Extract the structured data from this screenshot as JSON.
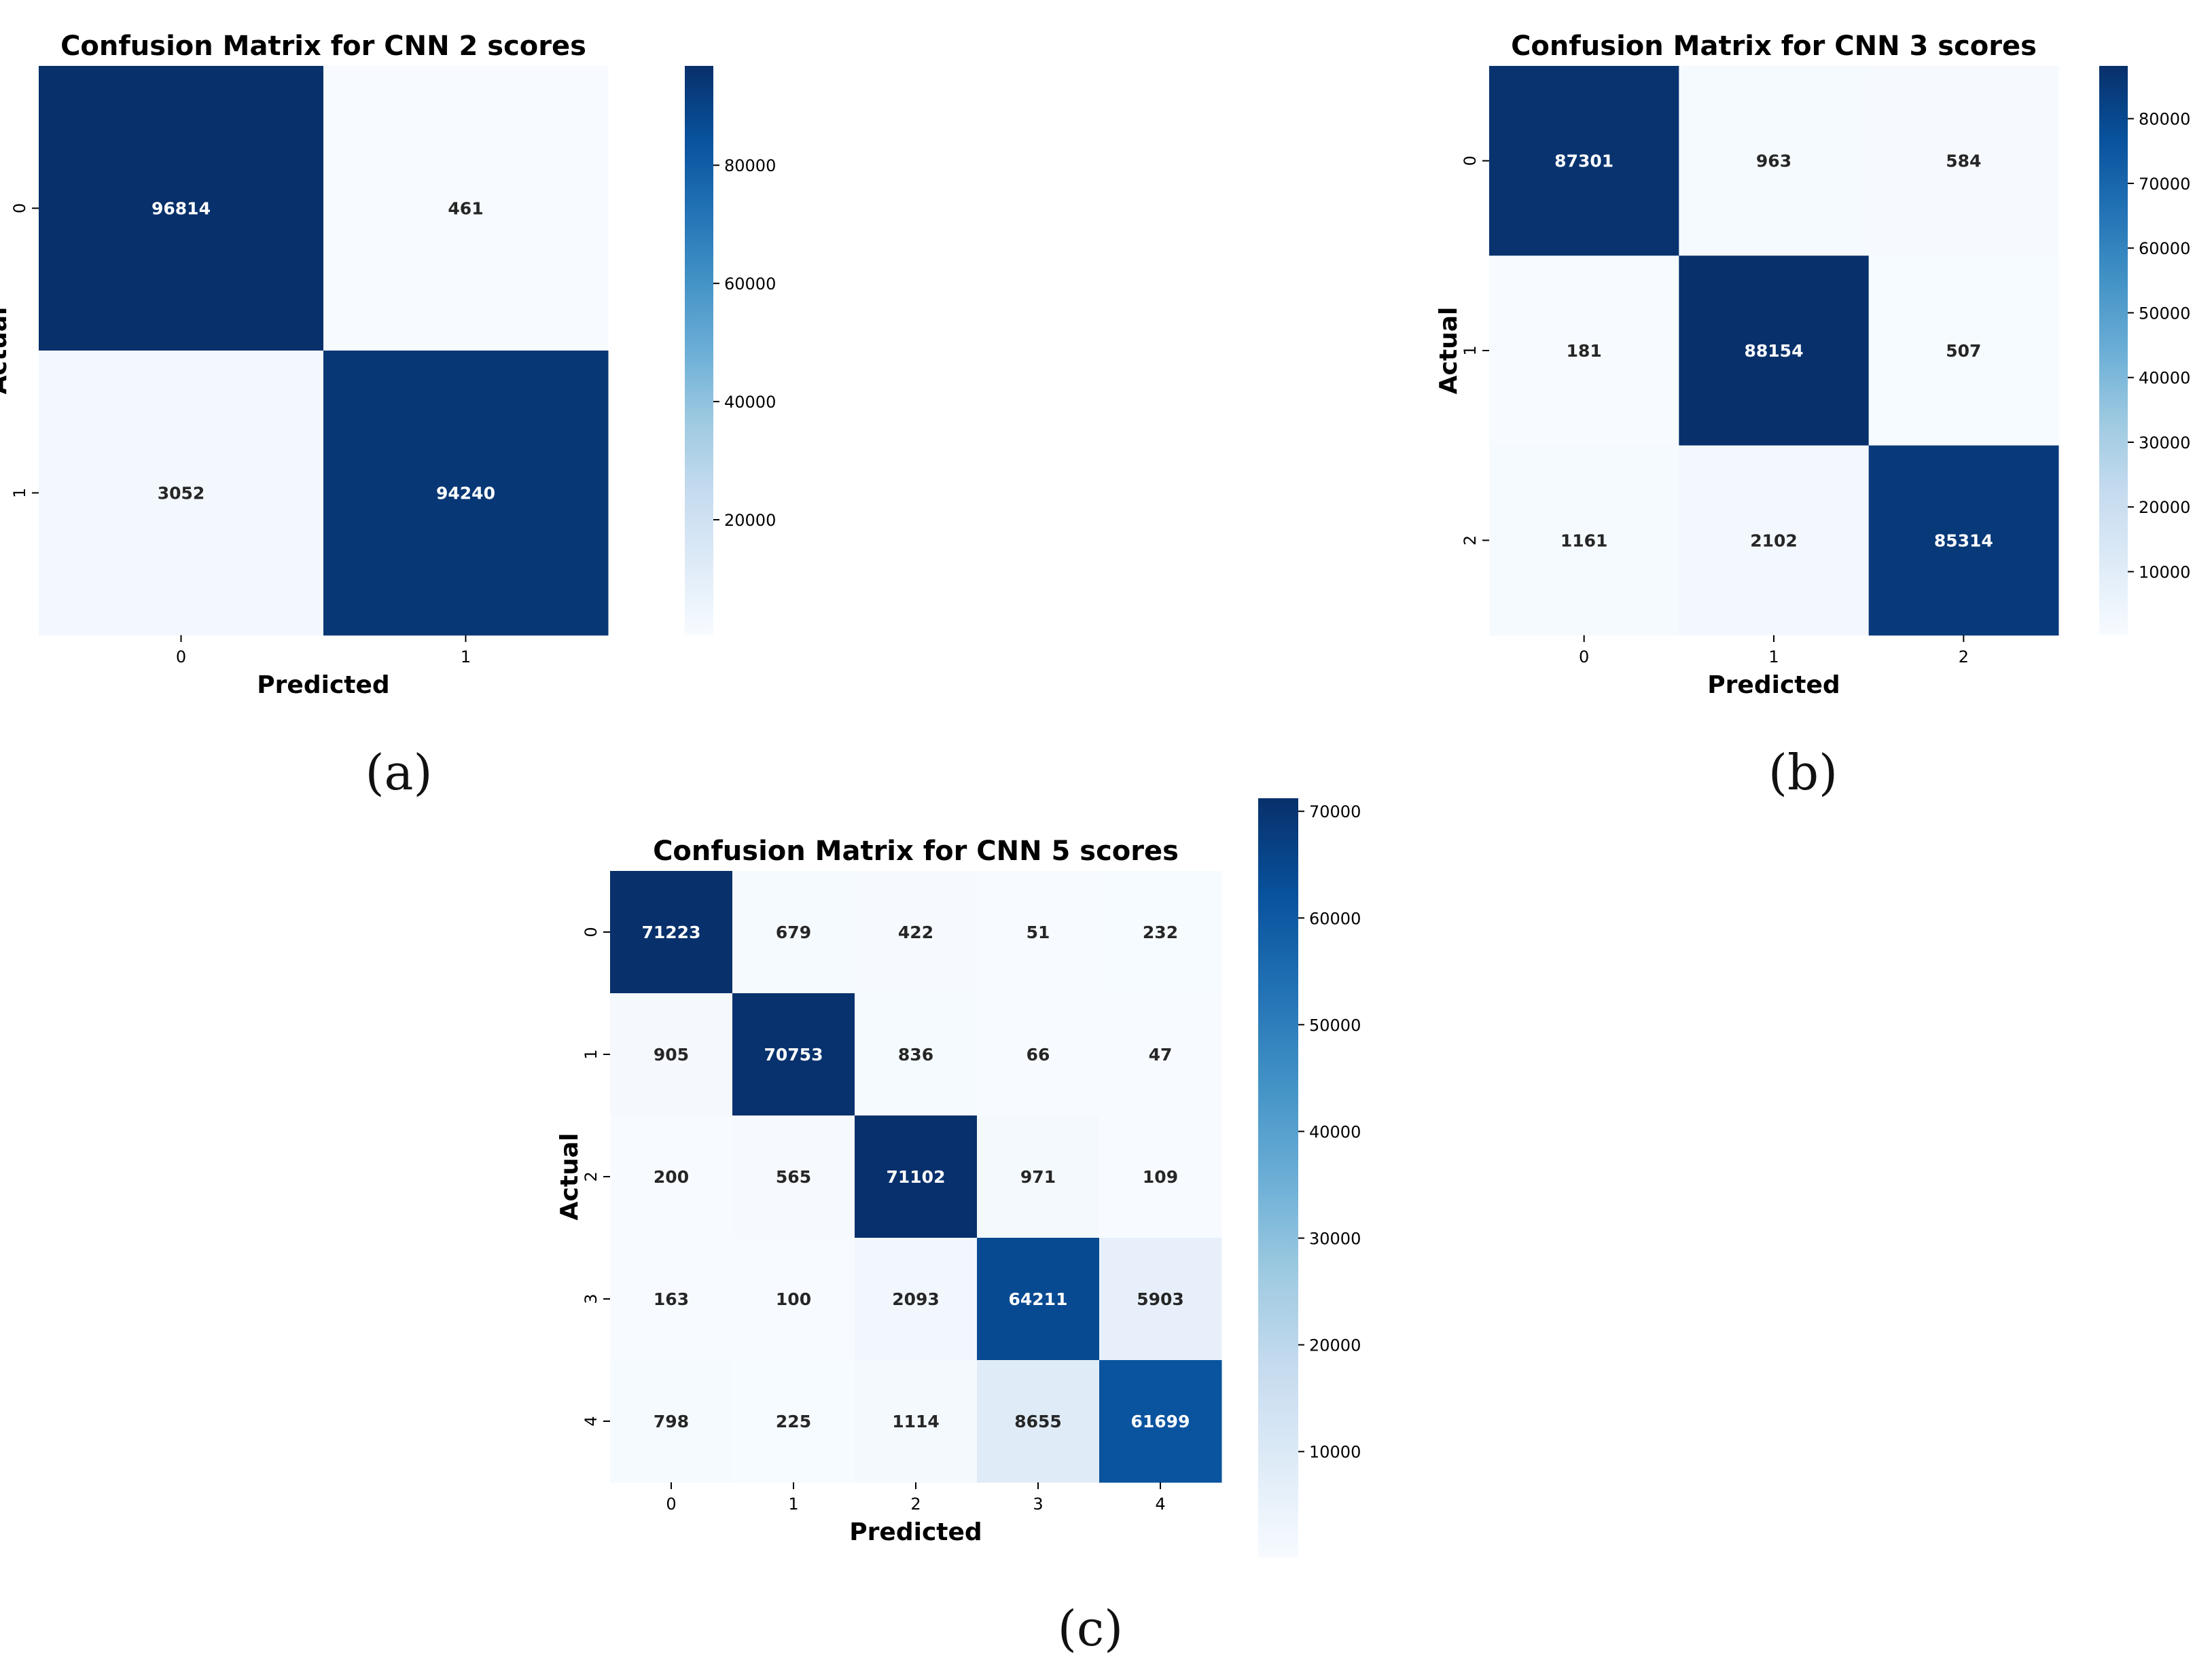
{
  "colors": {
    "low": "#f7fbff",
    "high": "#08306b",
    "text_dark": "#262626",
    "text_light": "#ffffff"
  },
  "captions": {
    "a": "(a)",
    "b": "(b)",
    "c": "(c)"
  },
  "chart_data": [
    {
      "type": "heatmap",
      "title": "Confusion Matrix for CNN 2 scores",
      "xlabel": "Predicted",
      "ylabel": "Actual",
      "x_ticks": [
        "0",
        "1"
      ],
      "y_ticks": [
        "0",
        "1"
      ],
      "matrix": [
        [
          96814,
          461
        ],
        [
          3052,
          94240
        ]
      ],
      "colorbar": {
        "min": 461,
        "max": 96814,
        "ticks": [
          20000,
          40000,
          60000,
          80000
        ],
        "tick_labels": [
          "20000",
          "40000",
          "60000",
          "80000"
        ]
      },
      "cell_labels": [
        [
          "96814",
          "461"
        ],
        [
          "3052",
          "94240"
        ]
      ]
    },
    {
      "type": "heatmap",
      "title": "Confusion Matrix for CNN 3 scores",
      "xlabel": "Predicted",
      "ylabel": "Actual",
      "x_ticks": [
        "0",
        "1",
        "2"
      ],
      "y_ticks": [
        "0",
        "1",
        "2"
      ],
      "matrix": [
        [
          87301,
          963,
          584
        ],
        [
          181,
          88154,
          507
        ],
        [
          1161,
          2102,
          85314
        ]
      ],
      "colorbar": {
        "min": 181,
        "max": 88154,
        "ticks": [
          10000,
          20000,
          30000,
          40000,
          50000,
          60000,
          70000,
          80000
        ],
        "tick_labels": [
          "10000",
          "20000",
          "30000",
          "40000",
          "50000",
          "60000",
          "70000",
          "80000"
        ]
      },
      "cell_labels": [
        [
          "87301",
          "963",
          "584"
        ],
        [
          "181",
          "88154",
          "507"
        ],
        [
          "1161",
          "2102",
          "85314"
        ]
      ]
    },
    {
      "type": "heatmap",
      "title": "Confusion Matrix for CNN 5 scores",
      "xlabel": "Predicted",
      "ylabel": "Actual",
      "x_ticks": [
        "0",
        "1",
        "2",
        "3",
        "4"
      ],
      "y_ticks": [
        "0",
        "1",
        "2",
        "3",
        "4"
      ],
      "matrix": [
        [
          71223,
          679,
          422,
          51,
          232
        ],
        [
          905,
          70753,
          836,
          66,
          47
        ],
        [
          200,
          565,
          71102,
          971,
          109
        ],
        [
          163,
          100,
          2093,
          64211,
          5903
        ],
        [
          798,
          225,
          1114,
          8655,
          61699
        ]
      ],
      "colorbar": {
        "min": 47,
        "max": 71223,
        "ticks": [
          10000,
          20000,
          30000,
          40000,
          50000,
          60000,
          70000
        ],
        "tick_labels": [
          "10000",
          "20000",
          "30000",
          "40000",
          "50000",
          "60000",
          "70000"
        ]
      },
      "cell_labels": [
        [
          "71223",
          "679",
          "422",
          "51",
          "232"
        ],
        [
          "905",
          "70753",
          "836",
          "66",
          "47"
        ],
        [
          "200",
          "565",
          "71102",
          "971",
          "109"
        ],
        [
          "163",
          "100",
          "2093",
          "64211",
          "5903"
        ],
        [
          "798",
          "225",
          "1114",
          "8655",
          "61699"
        ]
      ]
    }
  ]
}
